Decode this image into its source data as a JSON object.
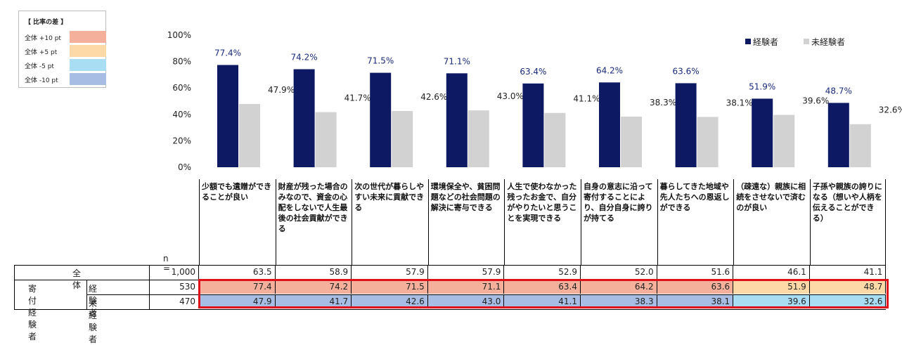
{
  "legend": {
    "title": "【 比率の差 】",
    "items": [
      {
        "label": "全体 +10 pt",
        "color": "#f4b09a"
      },
      {
        "label": "全体 +5 pt",
        "color": "#fcd9a6"
      },
      {
        "label": "全体 -5 pt",
        "color": "#a8ddf4"
      },
      {
        "label": "全体 -10 pt",
        "color": "#a7bde4"
      }
    ]
  },
  "chart_data": {
    "type": "bar",
    "categories": [
      "少額でも遺贈ができることが良い",
      "財産が残った場合のみなので、資金の心配をしないで人生最後の社会貢献ができる",
      "次の世代が暮らしやすい未来に貢献できる",
      "環境保全や、貧困問題などの社会問題の解決に寄与できる",
      "人生で使わなかった残ったお金で、自分がやりたいと思うことを実現できる",
      "自身の意志に沿って寄付することにより、自分自身に誇りが持てる",
      "暮らしてきた地域や先人たちへの恩返しができる",
      "（疎遠な）親族に相続をさせないで済むのが良い",
      "子孫や親族の誇りになる（想いや人柄を伝えることができる）"
    ],
    "series": [
      {
        "name": "経験者",
        "color": "#0d1a63",
        "values": [
          77.4,
          74.2,
          71.5,
          71.1,
          63.4,
          64.2,
          63.6,
          51.9,
          48.7
        ],
        "labels": [
          "77.4%",
          "74.2%",
          "71.5%",
          "71.1%",
          "63.4%",
          "64.2%",
          "63.6%",
          "51.9%",
          "48.7%"
        ]
      },
      {
        "name": "未経験者",
        "color": "#d3d2d2",
        "values": [
          47.9,
          41.7,
          42.6,
          43.0,
          41.1,
          38.3,
          38.1,
          39.6,
          32.6
        ],
        "labels": [
          "47.9%",
          "41.7%",
          "42.6%",
          "43.0%",
          "41.1%",
          "38.3%",
          "38.1%",
          "39.6%",
          "32.6%"
        ]
      }
    ],
    "yticks": [
      "0%",
      "20%",
      "40%",
      "60%",
      "80%",
      "100%"
    ],
    "ylim": [
      0,
      100
    ],
    "legend_position": "top-right",
    "grid": false
  },
  "table": {
    "n_label": "n =",
    "rows": [
      {
        "group": "全体",
        "sub": "",
        "n": "1,000",
        "values": [
          "63.5",
          "58.9",
          "57.9",
          "57.9",
          "52.9",
          "52.0",
          "51.6",
          "46.1",
          "41.1"
        ],
        "colors": [
          "#ffffff",
          "#ffffff",
          "#ffffff",
          "#ffffff",
          "#ffffff",
          "#ffffff",
          "#ffffff",
          "#ffffff",
          "#ffffff"
        ]
      },
      {
        "group": "寄付経験者",
        "sub": "経験者",
        "n": "530",
        "values": [
          "77.4",
          "74.2",
          "71.5",
          "71.1",
          "63.4",
          "64.2",
          "63.6",
          "51.9",
          "48.7"
        ],
        "colors": [
          "#f4b09a",
          "#f4b09a",
          "#f4b09a",
          "#f4b09a",
          "#f4b09a",
          "#f4b09a",
          "#f4b09a",
          "#fcd9a6",
          "#fcd9a6"
        ]
      },
      {
        "group": "",
        "sub": "未経験者",
        "n": "470",
        "values": [
          "47.9",
          "41.7",
          "42.6",
          "43.0",
          "41.1",
          "38.3",
          "38.1",
          "39.6",
          "32.6"
        ],
        "colors": [
          "#a7bde4",
          "#a7bde4",
          "#a7bde4",
          "#a7bde4",
          "#a7bde4",
          "#a7bde4",
          "#a7bde4",
          "#a8ddf4",
          "#a8ddf4"
        ]
      }
    ]
  }
}
